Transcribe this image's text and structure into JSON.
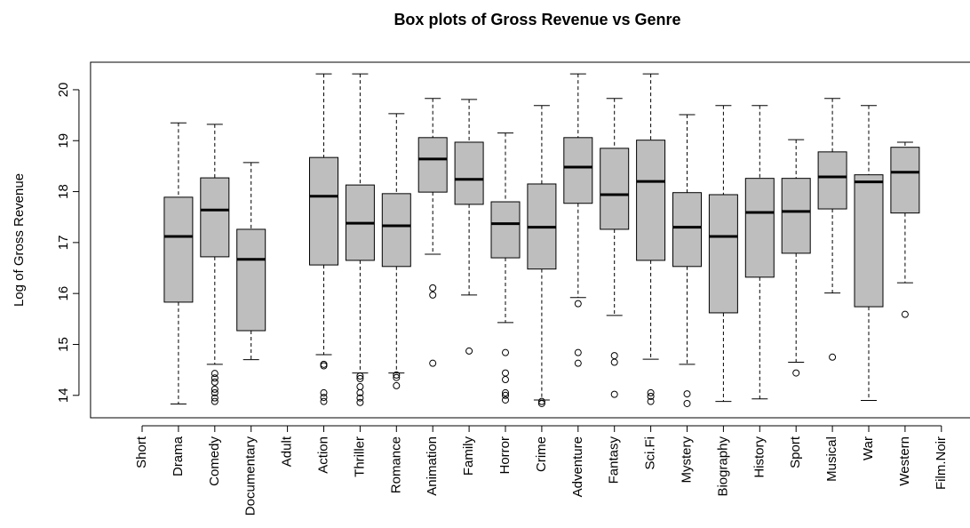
{
  "chart_data": {
    "type": "box",
    "title": "Box plots of Gross Revenue vs Genre",
    "y_label": "Log of Gross Revenue",
    "categories": [
      "Short",
      "Drama",
      "Comedy",
      "Documentary",
      "Adult",
      "Action",
      "Thriller",
      "Romance",
      "Animation",
      "Family",
      "Horror",
      "Crime",
      "Adventure",
      "Fantasy",
      "Sci.Fi",
      "Mystery",
      "Biography",
      "History",
      "Sport",
      "Musical",
      "War",
      "Western",
      "Film.Noir"
    ],
    "color": "#bebebe",
    "ylim": [
      13.56,
      20.54
    ],
    "yticks": [
      14,
      15,
      16,
      17,
      18,
      19,
      20
    ],
    "boxes": [
      null,
      {
        "min": 13.83,
        "q1": 15.83,
        "median": 17.12,
        "q3": 17.89,
        "max": 19.35,
        "outliers": []
      },
      {
        "min": 14.61,
        "q1": 16.72,
        "median": 17.64,
        "q3": 18.27,
        "max": 19.32,
        "outliers": [
          14.43,
          14.34,
          14.26,
          14.12,
          14.05,
          13.95,
          13.88
        ]
      },
      {
        "min": 14.7,
        "q1": 15.27,
        "median": 16.67,
        "q3": 17.26,
        "max": 18.57,
        "outliers": []
      },
      null,
      {
        "min": 14.8,
        "q1": 16.56,
        "median": 17.91,
        "q3": 18.67,
        "max": 20.31,
        "outliers": [
          14.61,
          14.58,
          14.05,
          13.96,
          13.88
        ]
      },
      {
        "min": 14.44,
        "q1": 16.65,
        "median": 17.38,
        "q3": 18.13,
        "max": 20.31,
        "outliers": [
          14.38,
          14.33,
          14.17,
          14.05,
          13.95,
          13.86
        ]
      },
      {
        "min": 14.44,
        "q1": 16.53,
        "median": 17.33,
        "q3": 17.96,
        "max": 19.53,
        "outliers": [
          14.4,
          14.35,
          14.19
        ]
      },
      {
        "min": 16.77,
        "q1": 17.99,
        "median": 18.64,
        "q3": 19.06,
        "max": 19.83,
        "outliers": [
          16.11,
          15.97,
          14.63
        ]
      },
      {
        "min": 15.97,
        "q1": 17.75,
        "median": 18.24,
        "q3": 18.97,
        "max": 19.81,
        "outliers": [
          14.87
        ]
      },
      {
        "min": 15.43,
        "q1": 16.7,
        "median": 17.37,
        "q3": 17.8,
        "max": 19.15,
        "outliers": [
          14.84,
          14.44,
          14.31,
          14.05,
          14.0,
          13.91
        ]
      },
      {
        "min": 13.91,
        "q1": 16.48,
        "median": 17.3,
        "q3": 18.15,
        "max": 19.69,
        "outliers": [
          13.88,
          13.84
        ]
      },
      {
        "min": 15.92,
        "q1": 17.77,
        "median": 18.48,
        "q3": 19.06,
        "max": 20.31,
        "outliers": [
          15.8,
          14.84,
          14.63
        ]
      },
      {
        "min": 15.57,
        "q1": 17.26,
        "median": 17.94,
        "q3": 18.85,
        "max": 19.83,
        "outliers": [
          14.78,
          14.65,
          14.02
        ]
      },
      {
        "min": 14.71,
        "q1": 16.65,
        "median": 18.2,
        "q3": 19.01,
        "max": 20.31,
        "outliers": [
          14.05,
          13.98,
          13.88
        ]
      },
      {
        "min": 14.61,
        "q1": 16.53,
        "median": 17.3,
        "q3": 17.98,
        "max": 19.51,
        "outliers": [
          14.03,
          13.84
        ]
      },
      {
        "min": 13.88,
        "q1": 15.62,
        "median": 17.12,
        "q3": 17.94,
        "max": 19.69,
        "outliers": []
      },
      {
        "min": 13.93,
        "q1": 16.32,
        "median": 17.59,
        "q3": 18.26,
        "max": 19.69,
        "outliers": []
      },
      {
        "min": 14.65,
        "q1": 16.79,
        "median": 17.61,
        "q3": 18.26,
        "max": 19.02,
        "outliers": [
          14.44
        ]
      },
      {
        "min": 16.01,
        "q1": 17.66,
        "median": 18.29,
        "q3": 18.78,
        "max": 19.83,
        "outliers": [
          14.75
        ]
      },
      {
        "min": 13.9,
        "q1": 15.74,
        "median": 18.19,
        "q3": 18.33,
        "max": 19.69,
        "outliers": []
      },
      {
        "min": 16.21,
        "q1": 17.58,
        "median": 18.38,
        "q3": 18.87,
        "max": 18.97,
        "outliers": [
          15.59
        ]
      },
      null
    ]
  }
}
